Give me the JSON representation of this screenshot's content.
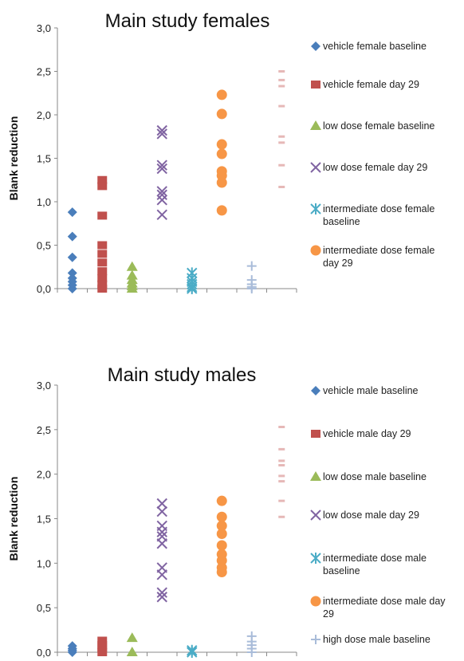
{
  "chart_data": [
    {
      "type": "scatter",
      "title": "Main study females",
      "ylabel": "Blank reduction",
      "xlabel": "",
      "ylim": [
        0,
        3
      ],
      "y_ticks": [
        "0,0",
        "0,5",
        "1,0",
        "1,5",
        "2,0",
        "2,5",
        "3,0"
      ],
      "grid": false,
      "legend_position": "right",
      "series": [
        {
          "name": "vehicle female baseline",
          "color": "#4a7ebb",
          "marker": "diamond",
          "x": 1,
          "values": [
            0.88,
            0.6,
            0.36,
            0.18,
            0.12,
            0.08,
            0.04,
            0.0
          ]
        },
        {
          "name": "vehicle female day 29",
          "color": "#c0504d",
          "marker": "square",
          "x": 2,
          "values": [
            1.25,
            1.18,
            0.84,
            0.5,
            0.4,
            0.3,
            0.2,
            0.12,
            0.05,
            0.0
          ]
        },
        {
          "name": "low dose female baseline",
          "color": "#9bbb59",
          "marker": "triangle",
          "x": 3,
          "values": [
            0.25,
            0.15,
            0.1,
            0.06,
            0.03,
            0.0
          ]
        },
        {
          "name": "low dose female day 29",
          "color": "#8064a2",
          "marker": "x",
          "x": 4,
          "values": [
            1.82,
            1.78,
            1.42,
            1.38,
            1.12,
            1.08,
            1.02,
            0.85
          ]
        },
        {
          "name": "intermediate dose female baseline",
          "color": "#4bacc6",
          "marker": "asterisk",
          "x": 5,
          "values": [
            0.18,
            0.12,
            0.08,
            0.05,
            0.02,
            0.0
          ]
        },
        {
          "name": "intermediate dose female day 29",
          "color": "#f79646",
          "marker": "circle",
          "x": 6,
          "values": [
            2.23,
            2.01,
            1.66,
            1.55,
            1.35,
            1.3,
            1.22,
            0.9
          ]
        },
        {
          "name": "",
          "color": "#a9bcd9",
          "marker": "plus",
          "x": 7,
          "values": [
            0.26,
            0.1,
            0.05,
            0.02,
            0.0
          ]
        },
        {
          "name": "",
          "color": "#e6b8b7",
          "marker": "dash",
          "x": 8,
          "values": [
            2.5,
            2.4,
            2.33,
            2.1,
            1.75,
            1.68,
            1.42,
            1.17
          ]
        }
      ]
    },
    {
      "type": "scatter",
      "title": "Main study males",
      "ylabel": "Blank reduction",
      "xlabel": "",
      "ylim": [
        0,
        3
      ],
      "y_ticks": [
        "0,0",
        "0,5",
        "1,0",
        "1,5",
        "2,0",
        "2,5",
        "3,0"
      ],
      "grid": false,
      "legend_position": "right",
      "series": [
        {
          "name": "vehicle male baseline",
          "color": "#4a7ebb",
          "marker": "diamond",
          "x": 1,
          "values": [
            0.07,
            0.04,
            0.02,
            0.0
          ]
        },
        {
          "name": "vehicle male day 29",
          "color": "#c0504d",
          "marker": "square",
          "x": 2,
          "values": [
            0.13,
            0.08,
            0.04,
            0.0
          ]
        },
        {
          "name": "low dose male baseline",
          "color": "#9bbb59",
          "marker": "triangle",
          "x": 3,
          "values": [
            0.16,
            0.0
          ]
        },
        {
          "name": "low dose male day 29",
          "color": "#8064a2",
          "marker": "x",
          "x": 4,
          "values": [
            1.67,
            1.58,
            1.42,
            1.35,
            1.3,
            1.22,
            0.95,
            0.87,
            0.67,
            0.62
          ]
        },
        {
          "name": "intermediate dose male baseline",
          "color": "#4bacc6",
          "marker": "asterisk",
          "x": 5,
          "values": [
            0.02,
            0.0
          ]
        },
        {
          "name": "intermediate dose male day 29",
          "color": "#f79646",
          "marker": "circle",
          "x": 6,
          "values": [
            1.7,
            1.52,
            1.42,
            1.33,
            1.2,
            1.1,
            1.03,
            0.95,
            0.9
          ]
        },
        {
          "name": "high dose male baseline",
          "color": "#a9bcd9",
          "marker": "plus",
          "x": 7,
          "values": [
            0.18,
            0.12,
            0.08,
            0.04,
            0.0
          ]
        },
        {
          "name": "",
          "color": "#e6b8b7",
          "marker": "dash",
          "x": 8,
          "values": [
            2.53,
            2.28,
            2.15,
            2.1,
            1.98,
            1.92,
            1.7,
            1.52
          ]
        }
      ]
    }
  ]
}
